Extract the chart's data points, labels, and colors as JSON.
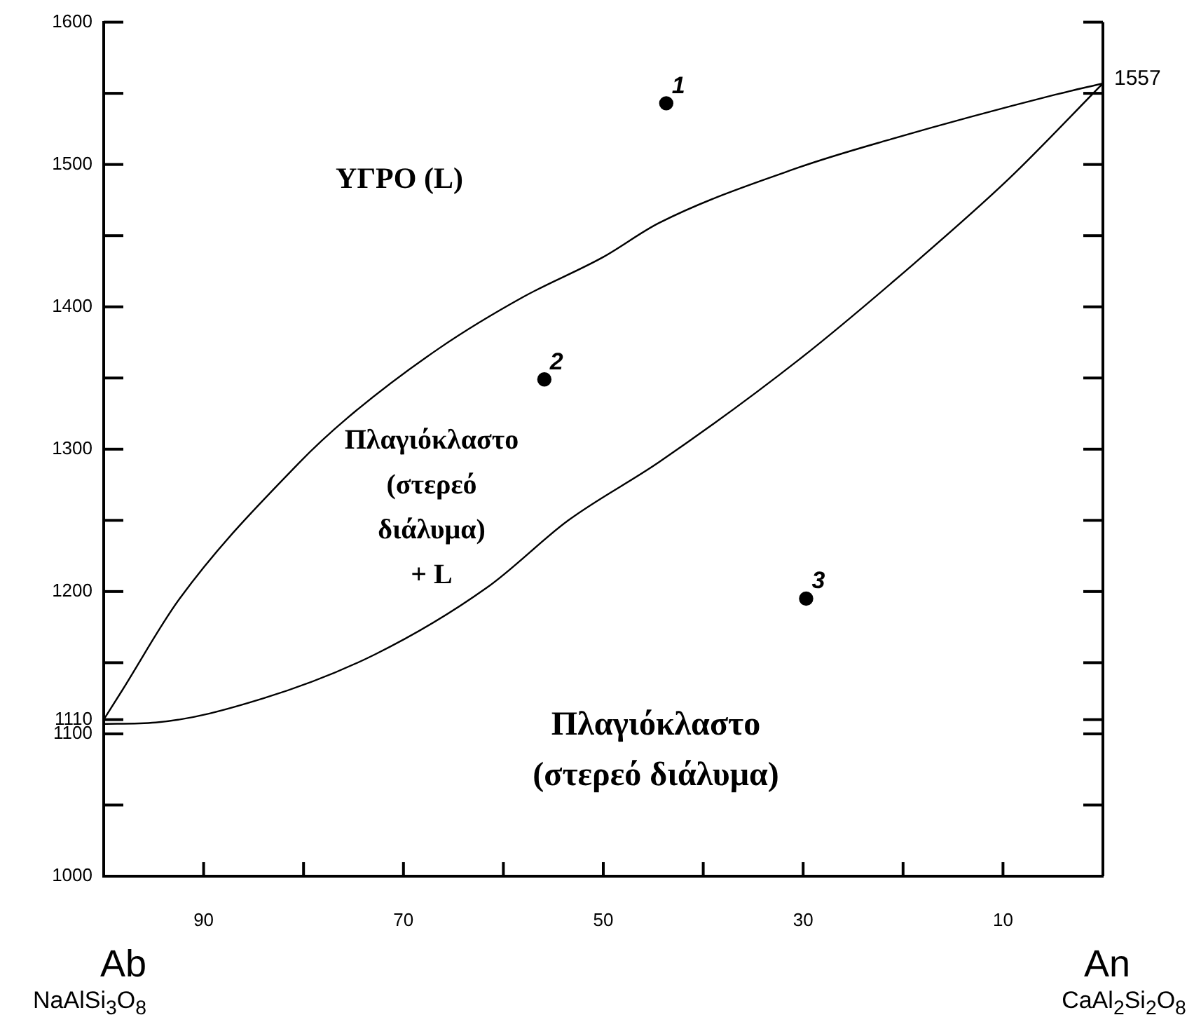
{
  "chart_data": {
    "type": "line",
    "series": [
      {
        "type": "line",
        "marker": "none",
        "color": "#000000",
        "x": [
          100,
          98.2,
          92.4,
          80.5,
          75.6,
          66.4,
          58,
          50,
          44.4,
          30.4,
          21.6,
          4.8,
          0
        ],
        "values": [
          1110,
          1130,
          1195,
          1290,
          1322,
          1371,
          1407,
          1435,
          1459,
          1498,
          1517,
          1549,
          1557
        ]
      },
      {
        "type": "line",
        "marker": "none",
        "color": "#000000",
        "x": [
          100,
          94.8,
          84,
          72.8,
          61.6,
          53.5,
          44.4,
          30.4,
          18.8,
          9.4,
          0
        ],
        "values": [
          1107,
          1108,
          1125,
          1156,
          1203,
          1250,
          1291,
          1363,
          1431,
          1490,
          1557
        ]
      },
      {
        "type": "scatter",
        "marker": "circle",
        "color": "#000000",
        "x": [
          43.7,
          55.9,
          29.7
        ],
        "values": [
          1543,
          1349,
          1195
        ]
      }
    ],
    "line_style": "solid",
    "legend": false,
    "xlim": [
      100,
      0
    ],
    "xticks": [
      {
        "value": 90,
        "label": "90"
      },
      {
        "value": 80,
        "label": null
      },
      {
        "value": 70,
        "label": "70"
      },
      {
        "value": 60,
        "label": null
      },
      {
        "value": 50,
        "label": "50"
      },
      {
        "value": 40,
        "label": null
      },
      {
        "value": 30,
        "label": "30"
      },
      {
        "value": 20,
        "label": null
      },
      {
        "value": 10,
        "label": "10"
      }
    ],
    "ylim": [
      1000,
      1600
    ],
    "yticks": [
      1000,
      {
        "value": 1050,
        "label": null
      },
      1100,
      1110,
      {
        "value": 1150,
        "label": null
      },
      1200,
      {
        "value": 1250,
        "label": null
      },
      1300,
      {
        "value": 1350,
        "label": null
      },
      1400,
      {
        "value": 1450,
        "label": null
      },
      1500,
      {
        "value": 1550,
        "label": null
      },
      1600
    ],
    "annotations": [
      {
        "text": "1",
        "x": 43.7,
        "y": 1543
      },
      {
        "text": "2",
        "x": 55.9,
        "y": 1349
      },
      {
        "text": "3",
        "x": 29.7,
        "y": 1195
      },
      {
        "text": "1557",
        "x": 0,
        "y": 1557
      },
      "ΥΓΡΟ (L)",
      "Πλαγιόκλαστο\n(στερεό\nδιάλυμα)\n+ L",
      "Πλαγιόκλαστο\n(στερεό διάλυμα)",
      "Ab",
      "NaAlSi$_{3}$O$_{8}$",
      "An",
      "CaAl$_{2}$Si$_{2}$O$_{8}$"
    ]
  }
}
